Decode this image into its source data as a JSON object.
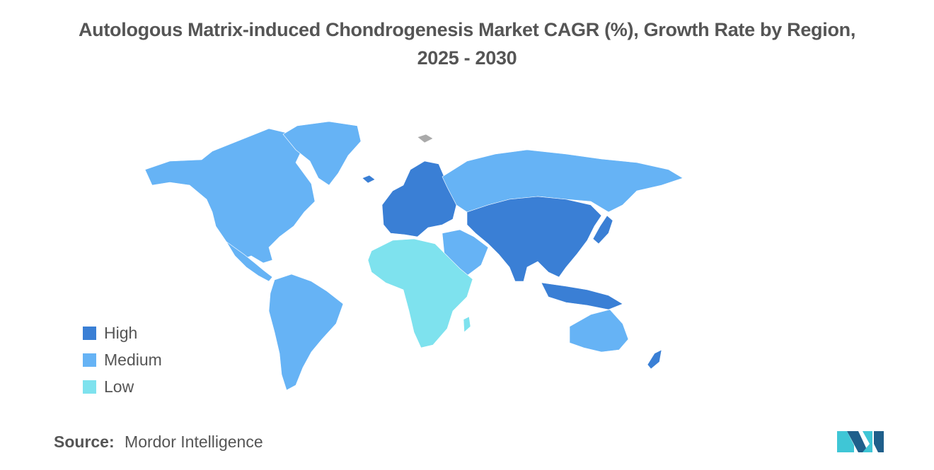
{
  "title": {
    "line1": "Autologous Matrix-induced Chondrogenesis Market CAGR (%), Growth Rate by Region,",
    "line2": "2025 - 2030"
  },
  "legend": [
    {
      "label": "High",
      "color": "#3a7fd5"
    },
    {
      "label": "Medium",
      "color": "#66b3f5"
    },
    {
      "label": "Low",
      "color": "#7ee2ee"
    }
  ],
  "colors": {
    "high": "#3a7fd5",
    "medium": "#66b3f5",
    "low": "#7ee2ee",
    "no_data": "#aaaaaa",
    "text": "#555555"
  },
  "regions": {
    "north_america": "Medium",
    "south_america": "Medium",
    "europe": "High",
    "asia_pacific": "High",
    "australia": "Medium",
    "russia": "Medium",
    "middle_east": "Medium",
    "africa": "Low"
  },
  "source": {
    "label": "Source:",
    "value": "Mordor Intelligence"
  }
}
